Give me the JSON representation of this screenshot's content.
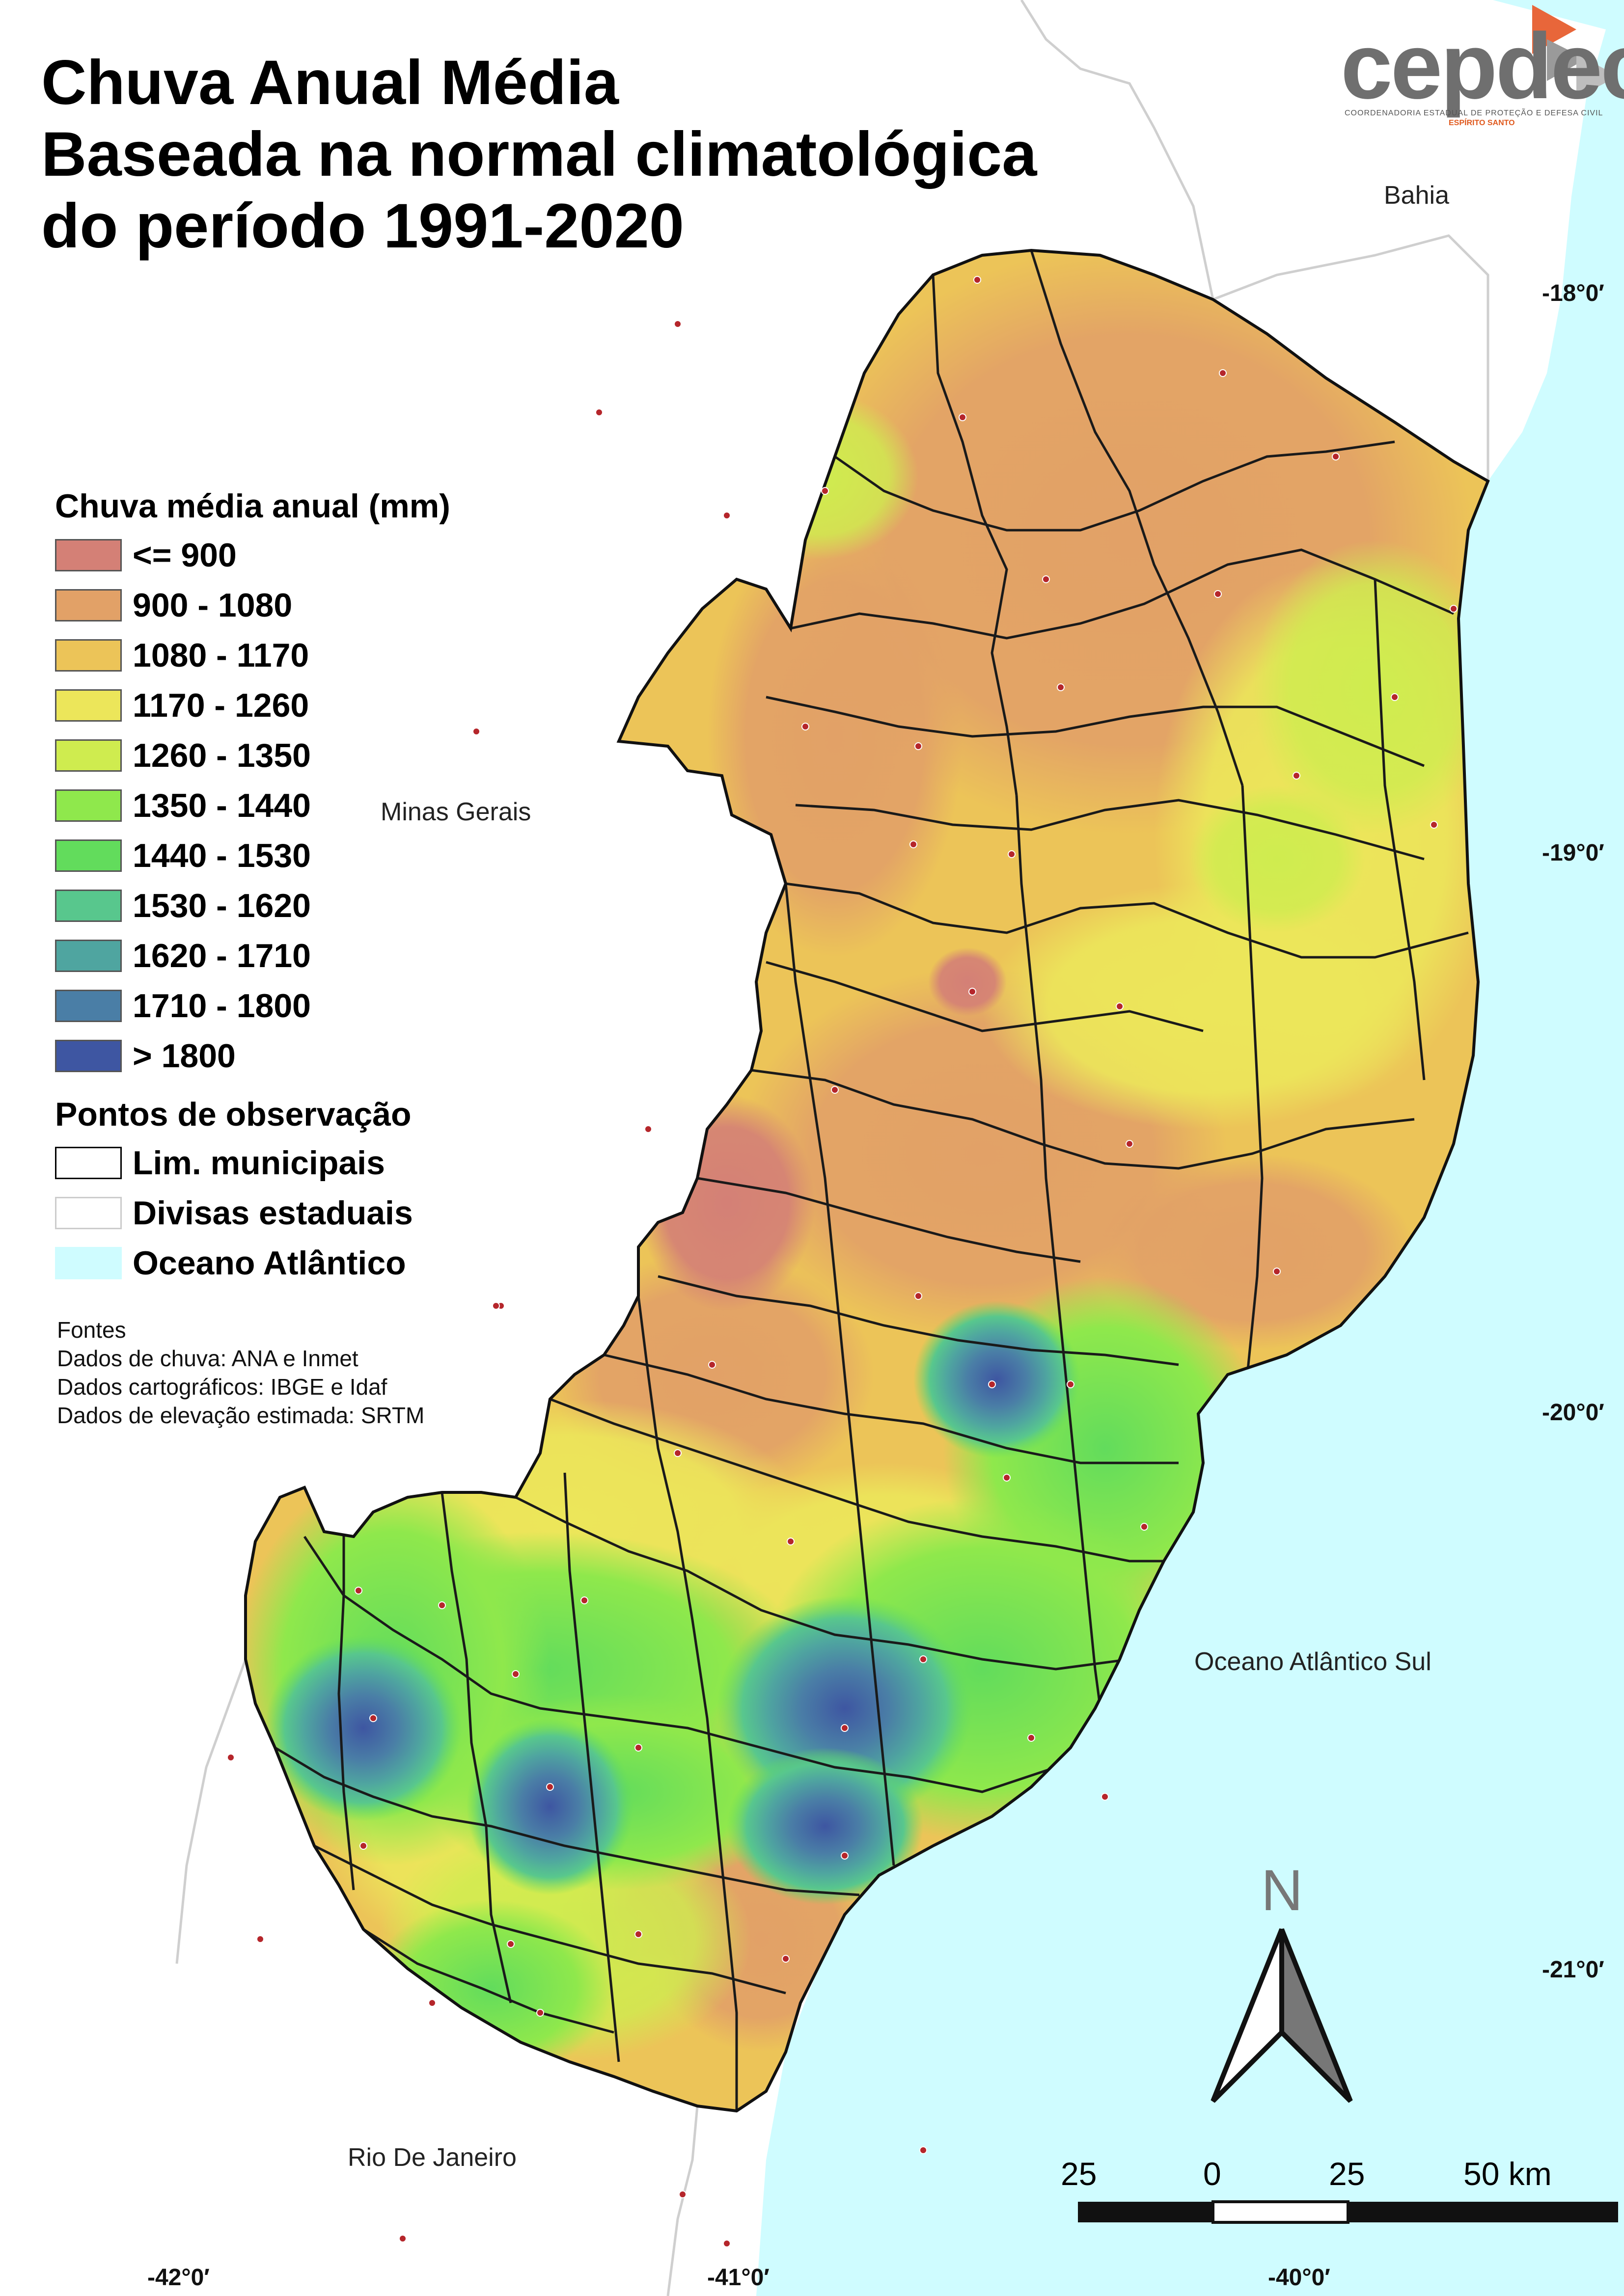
{
  "title": {
    "line1": "Chuva Anual Média",
    "line2": "Baseada na normal climatológica",
    "line3": "do período 1991-2020"
  },
  "logo": {
    "text": "cepdec",
    "subtitle": "COORDENADORIA ESTADUAL DE PROTEÇÃO E DEFESA CIVIL",
    "subtitle2": "ESPÍRITO SANTO"
  },
  "legend": {
    "title": "Chuva média anual (mm)",
    "classes": [
      {
        "label": "<= 900",
        "color": "#d48076"
      },
      {
        "label": "900 - 1080",
        "color": "#e2a167"
      },
      {
        "label": "1080 - 1170",
        "color": "#ecc458"
      },
      {
        "label": "1170 - 1260",
        "color": "#ece65a"
      },
      {
        "label": "1260 - 1350",
        "color": "#cfec4f"
      },
      {
        "label": "1350 - 1440",
        "color": "#8fe84c"
      },
      {
        "label": "1440 - 1530",
        "color": "#62dc5c"
      },
      {
        "label": "1530 - 1620",
        "color": "#58c78d"
      },
      {
        "label": "1620 - 1710",
        "color": "#4fa5a0"
      },
      {
        "label": "1710 - 1800",
        "color": "#4a7ea6"
      },
      {
        "label": "> 1800",
        "color": "#3e56a2"
      }
    ],
    "points_title": "Pontos de observação",
    "extra": [
      {
        "label": "Lim. municipais",
        "fill": "#ffffff",
        "stroke": "#000000"
      },
      {
        "label": "Divisas estaduais",
        "fill": "#ffffff",
        "stroke": "#cccccc"
      },
      {
        "label": "Oceano Atlântico",
        "fill": "#cffcff",
        "stroke": "#cffcff"
      }
    ]
  },
  "sources": {
    "title": "Fontes",
    "lines": [
      "Dados de chuva: ANA e Inmet",
      "Dados cartográficos: IBGE e Idaf",
      "Dados de elevação estimada: SRTM"
    ]
  },
  "places": {
    "bahia": "Bahia",
    "minas": "Minas Gerais",
    "rio": "Rio De Janeiro",
    "ocean": "Oceano Atlântico Sul"
  },
  "coords": {
    "lat": [
      "-18°0′",
      "-19°0′",
      "-20°0′",
      "-21°0′"
    ],
    "lon": [
      "-42°0′",
      "-41°0′",
      "-40°0′"
    ]
  },
  "north": "N",
  "scale": {
    "labels": [
      "25",
      "0",
      "25",
      "50 km"
    ]
  },
  "colors": {
    "ocean": "#cffcff",
    "outside": "#ffffff",
    "station": "#b5262b"
  }
}
